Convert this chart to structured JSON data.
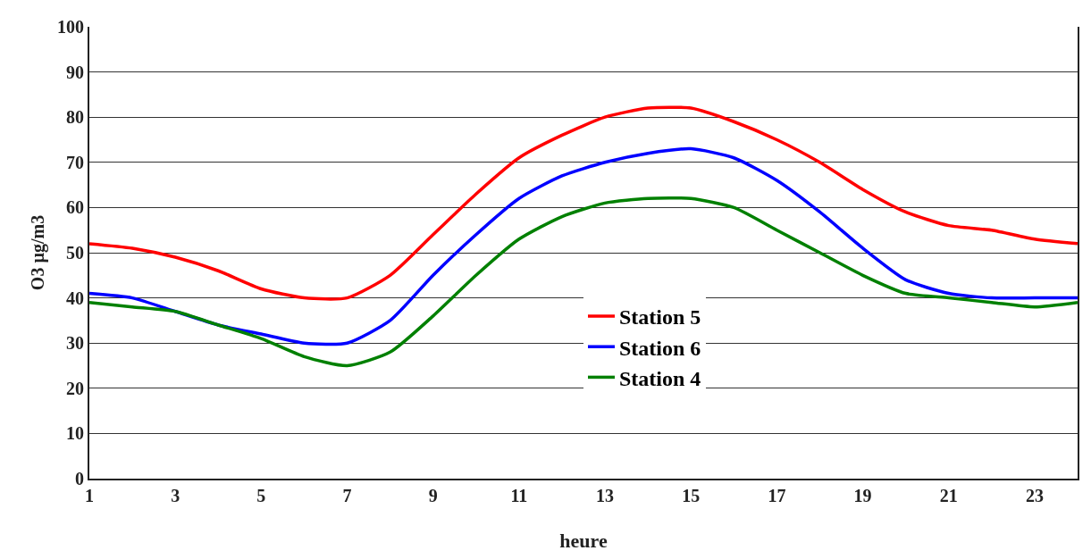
{
  "chart_data": {
    "type": "line",
    "xlabel": "heure",
    "ylabel": "O3 µg/m3",
    "x": [
      1,
      2,
      3,
      4,
      5,
      6,
      7,
      8,
      9,
      10,
      11,
      12,
      13,
      14,
      15,
      16,
      17,
      18,
      19,
      20,
      21,
      22,
      23,
      24
    ],
    "series": [
      {
        "name": "Station 5",
        "color": "#ff0000",
        "values": [
          52,
          51,
          49,
          46,
          42,
          40,
          40,
          45,
          54,
          63,
          71,
          76,
          80,
          82,
          82,
          79,
          75,
          70,
          64,
          59,
          56,
          55,
          53,
          52
        ]
      },
      {
        "name": "Station 6",
        "color": "#0000ff",
        "values": [
          41,
          40,
          37,
          34,
          32,
          30,
          30,
          35,
          45,
          54,
          62,
          67,
          70,
          72,
          73,
          71,
          66,
          59,
          51,
          44,
          41,
          40,
          40,
          40
        ]
      },
      {
        "name": "Station 4",
        "color": "#008000",
        "values": [
          39,
          38,
          37,
          34,
          31,
          27,
          25,
          28,
          36,
          45,
          53,
          58,
          61,
          62,
          62,
          60,
          55,
          50,
          45,
          41,
          40,
          39,
          38,
          39
        ]
      }
    ],
    "xlim": [
      1,
      24
    ],
    "xticks": [
      1,
      3,
      5,
      7,
      9,
      11,
      13,
      15,
      17,
      19,
      21,
      23
    ],
    "ylim": [
      0,
      100
    ],
    "yticks": [
      0,
      10,
      20,
      30,
      40,
      50,
      60,
      70,
      80,
      90,
      100
    ],
    "grid": "y",
    "legend": "bottom",
    "marker": "none",
    "line_style": "solid"
  }
}
